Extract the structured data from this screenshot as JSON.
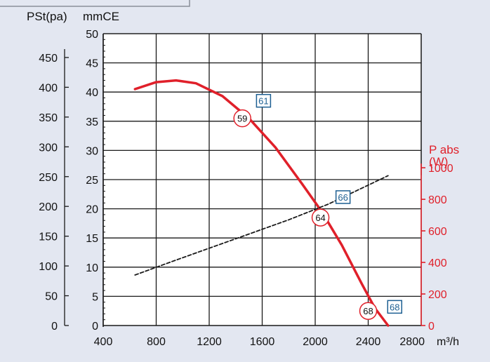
{
  "colors": {
    "background": "#e3e7f1",
    "accent": "#e0202a",
    "badge": "#1d5f92",
    "grid": "#1a1a1a"
  },
  "chart_data": {
    "type": "line",
    "x_unit": "m³/h",
    "left_label_pa": "PSt(pa)",
    "left_label_mmce": "mmCE",
    "right_label_line1": "P abs",
    "right_label_line2": "(W)",
    "x_ticks": [
      "400",
      "800",
      "1200",
      "1600",
      "2000",
      "2400",
      "2800"
    ],
    "pa_ticks": [
      "0",
      "50",
      "100",
      "150",
      "200",
      "250",
      "300",
      "350",
      "400",
      "450"
    ],
    "mmce_ticks": [
      "0",
      "5",
      "10",
      "15",
      "20",
      "25",
      "30",
      "35",
      "40",
      "45",
      "50"
    ],
    "w_ticks": [
      "0",
      "200",
      "400",
      "600",
      "800",
      "1000"
    ],
    "xlim": [
      400,
      2800
    ],
    "ylim_mmce": [
      0,
      50
    ],
    "ylim_pa": [
      0,
      490
    ],
    "ylim_w": [
      0,
      1850
    ],
    "grid": true,
    "series": [
      {
        "axis": "mmCE",
        "style": "solid",
        "color": "#e0202a",
        "x": [
          640,
          800,
          950,
          1100,
          1300,
          1500,
          1700,
          1900,
          2050,
          2200,
          2350,
          2450,
          2550
        ],
        "y": [
          40.5,
          41.7,
          42.0,
          41.5,
          39.3,
          35.5,
          30.5,
          24.3,
          19.5,
          13.8,
          7.2,
          3.0,
          0
        ]
      },
      {
        "axis": "W",
        "style": "dashed",
        "color": "#1a1a1a",
        "x": [
          640,
          900,
          1200,
          1500,
          1800,
          2100,
          2400,
          2550
        ],
        "y": [
          320,
          400,
          490,
          580,
          670,
          770,
          890,
          950
        ]
      }
    ],
    "noise_markers": [
      {
        "label": "59",
        "x": 1450,
        "y": 35.5,
        "shape": "circle"
      },
      {
        "label": "64",
        "x": 2040,
        "y": 18.5,
        "shape": "circle"
      },
      {
        "label": "68",
        "x": 2400,
        "y": 2.5,
        "shape": "circle"
      }
    ],
    "point_markers": [
      {
        "label": "61",
        "x": 1610,
        "y": 38.5,
        "shape": "square"
      },
      {
        "label": "66",
        "x": 2210,
        "y": 22.0,
        "shape": "square"
      },
      {
        "label": "68",
        "x": 2600,
        "y": 3.2,
        "shape": "square"
      }
    ]
  }
}
